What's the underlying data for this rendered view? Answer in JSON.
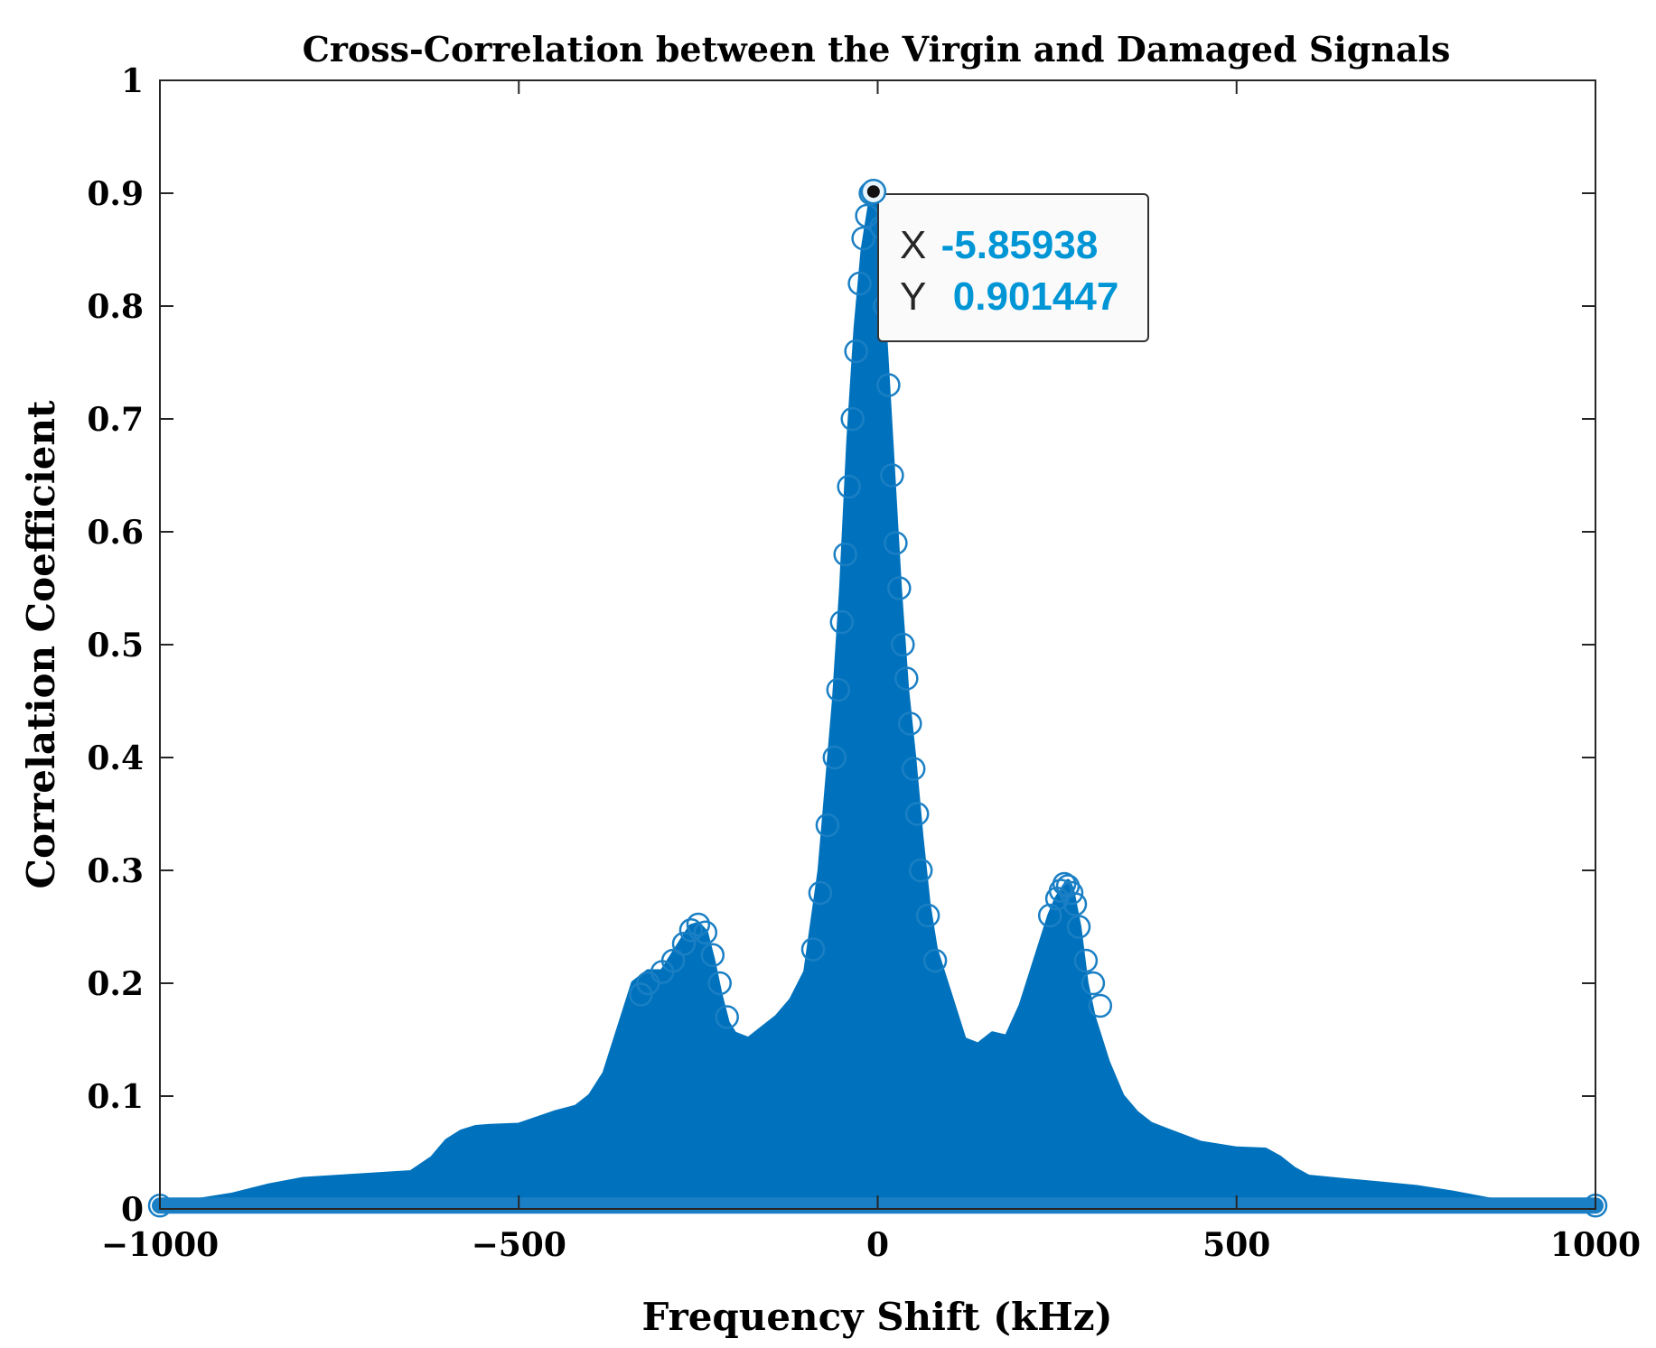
{
  "chart_data": {
    "type": "scatter",
    "title": "Cross-Correlation between the Virgin and Damaged Signals",
    "xlabel": "Frequency Shift (kHz)",
    "ylabel": "Correlation Coefficient",
    "xlim": [
      -1000,
      1000
    ],
    "ylim": [
      0,
      1
    ],
    "xticks": [
      -1000,
      -500,
      0,
      500,
      1000
    ],
    "xtick_labels": [
      "−1000",
      "−500",
      "0",
      "500",
      "1000"
    ],
    "yticks": [
      0,
      0.1,
      0.2,
      0.3,
      0.4,
      0.5,
      0.6,
      0.7,
      0.8,
      0.9,
      1
    ],
    "ytick_labels": [
      "0",
      "0.1",
      "0.2",
      "0.3",
      "0.4",
      "0.5",
      "0.6",
      "0.7",
      "0.8",
      "0.9",
      "1"
    ],
    "grid": false,
    "marker": "circle",
    "color": "#0072BD",
    "envelope": {
      "x": [
        -1000,
        -950,
        -900,
        -850,
        -800,
        -750,
        -700,
        -650,
        -620,
        -600,
        -580,
        -560,
        -540,
        -500,
        -450,
        -420,
        -400,
        -380,
        -360,
        -340,
        -320,
        -300,
        -280,
        -260,
        -250,
        -240,
        -230,
        -220,
        -210,
        -200,
        -180,
        -160,
        -140,
        -120,
        -100,
        -80,
        -60,
        -50,
        -40,
        -30,
        -20,
        -10,
        -6,
        0,
        10,
        20,
        30,
        40,
        50,
        60,
        70,
        80,
        100,
        120,
        140,
        160,
        180,
        200,
        220,
        240,
        250,
        260,
        265,
        270,
        280,
        290,
        300,
        320,
        340,
        360,
        380,
        400,
        450,
        500,
        540,
        560,
        580,
        600,
        650,
        700,
        750,
        800,
        850,
        900,
        950,
        1000
      ],
      "y": [
        0.004,
        0.007,
        0.012,
        0.02,
        0.026,
        0.028,
        0.03,
        0.032,
        0.045,
        0.06,
        0.068,
        0.072,
        0.073,
        0.074,
        0.085,
        0.09,
        0.1,
        0.12,
        0.16,
        0.2,
        0.21,
        0.21,
        0.23,
        0.25,
        0.252,
        0.245,
        0.22,
        0.19,
        0.165,
        0.155,
        0.15,
        0.16,
        0.17,
        0.185,
        0.21,
        0.3,
        0.45,
        0.55,
        0.68,
        0.78,
        0.85,
        0.89,
        0.901,
        0.86,
        0.77,
        0.66,
        0.55,
        0.46,
        0.4,
        0.33,
        0.27,
        0.23,
        0.19,
        0.15,
        0.145,
        0.155,
        0.152,
        0.18,
        0.22,
        0.26,
        0.275,
        0.285,
        0.29,
        0.283,
        0.25,
        0.2,
        0.17,
        0.13,
        0.1,
        0.085,
        0.075,
        0.07,
        0.058,
        0.053,
        0.052,
        0.045,
        0.035,
        0.028,
        0.025,
        0.022,
        0.019,
        0.014,
        0.008,
        0.004,
        0.003,
        0.003
      ]
    },
    "outline_circles": {
      "x": [
        -1000,
        -330,
        -320,
        -300,
        -285,
        -270,
        -260,
        -250,
        -240,
        -230,
        -220,
        -210,
        -90,
        -80,
        -70,
        -60,
        -55,
        -50,
        -45,
        -40,
        -35,
        -30,
        -25,
        -20,
        -15,
        -10,
        5,
        10,
        15,
        20,
        25,
        30,
        35,
        40,
        45,
        50,
        55,
        60,
        70,
        80,
        240,
        250,
        255,
        260,
        265,
        270,
        275,
        280,
        290,
        300,
        310,
        1000
      ],
      "y": [
        0.003,
        0.19,
        0.2,
        0.21,
        0.22,
        0.235,
        0.247,
        0.252,
        0.245,
        0.225,
        0.2,
        0.17,
        0.23,
        0.28,
        0.34,
        0.4,
        0.46,
        0.52,
        0.58,
        0.64,
        0.7,
        0.76,
        0.82,
        0.86,
        0.88,
        0.9,
        0.87,
        0.8,
        0.73,
        0.65,
        0.59,
        0.55,
        0.5,
        0.47,
        0.43,
        0.39,
        0.35,
        0.3,
        0.26,
        0.22,
        0.26,
        0.275,
        0.282,
        0.288,
        0.286,
        0.28,
        0.27,
        0.25,
        0.22,
        0.2,
        0.18,
        0.003
      ]
    },
    "datatip": {
      "x_label": "X",
      "x_value": "-5.85938",
      "y_label": "Y",
      "y_value": "0.901447",
      "x": -5.85938,
      "y": 0.901447,
      "value_color": "#0096D6"
    }
  }
}
